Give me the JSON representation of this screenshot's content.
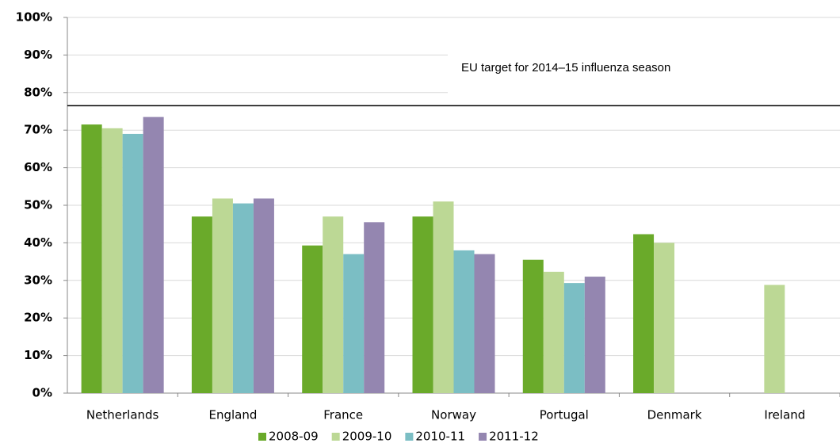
{
  "chart_data": {
    "type": "bar",
    "categories": [
      "Netherlands",
      "England",
      "France",
      "Norway",
      "Portugal",
      "Denmark",
      "Ireland"
    ],
    "series": [
      {
        "name": "2008-09",
        "color": "#6aaa2a",
        "values": [
          71.5,
          47,
          39.3,
          47,
          35.5,
          42.3,
          null
        ]
      },
      {
        "name": "2009-10",
        "color": "#bcd895",
        "values": [
          70.5,
          51.8,
          47,
          51,
          32.3,
          40,
          28.8
        ]
      },
      {
        "name": "2010-11",
        "color": "#7bbec4",
        "values": [
          69,
          50.5,
          37,
          38,
          29.3,
          null,
          null
        ]
      },
      {
        "name": "2011-12",
        "color": "#9486b0",
        "values": [
          73.5,
          51.8,
          45.5,
          37,
          31,
          null,
          null
        ]
      }
    ],
    "ylim": [
      0,
      100
    ],
    "yticks": [
      {
        "value": 0,
        "label": "0%"
      },
      {
        "value": 10,
        "label": "10%"
      },
      {
        "value": 20,
        "label": "20%"
      },
      {
        "value": 30,
        "label": "30%"
      },
      {
        "value": 40,
        "label": "40%"
      },
      {
        "value": 50,
        "label": "50%"
      },
      {
        "value": 60,
        "label": "60%"
      },
      {
        "value": 70,
        "label": "70%"
      },
      {
        "value": 80,
        "label": "80%"
      },
      {
        "value": 90,
        "label": "90%"
      },
      {
        "value": 100,
        "label": "100%"
      }
    ],
    "grid": true,
    "target_line": 76.5,
    "annotation": "EU target for 2014–15 influenza season",
    "legend": "bottom"
  }
}
